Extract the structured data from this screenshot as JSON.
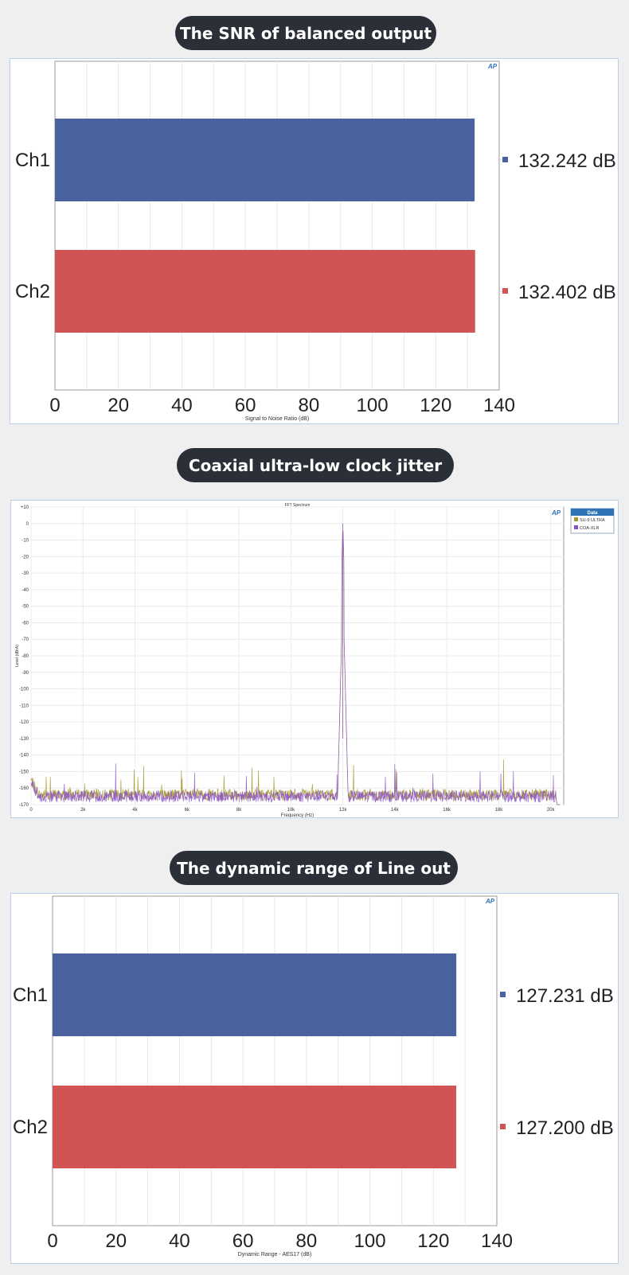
{
  "sections": [
    {
      "title": "The SNR of balanced output"
    },
    {
      "title": "Coaxial ultra-low clock jitter"
    },
    {
      "title": "The dynamic range of Line out"
    }
  ],
  "ap_logo": "AP",
  "chart_data": [
    {
      "type": "bar",
      "orientation": "horizontal",
      "categories": [
        "Ch1",
        "Ch2"
      ],
      "values": [
        132.242,
        132.402
      ],
      "value_labels": [
        "132.242 dB",
        "132.402 dB"
      ],
      "colors": [
        "#4a63a0",
        "#d05454"
      ],
      "xlabel": "Signal to Noise Ratio (dB)",
      "xlim": [
        0,
        140
      ],
      "xticks": [
        0,
        20,
        40,
        60,
        80,
        100,
        120,
        140
      ],
      "grid": true
    },
    {
      "type": "line",
      "title": "FFT Spectrum",
      "xlabel": "Frequency (Hz)",
      "ylabel": "Level (dBrA)",
      "xlim": [
        0,
        20500
      ],
      "ylim": [
        -170,
        10
      ],
      "xticks": [
        0,
        2000,
        4000,
        6000,
        8000,
        10000,
        12000,
        14000,
        16000,
        18000,
        20000
      ],
      "xtick_labels": [
        "0",
        "2k",
        "4k",
        "6k",
        "8k",
        "10k",
        "12k",
        "14k",
        "16k",
        "18k",
        "20k"
      ],
      "yticks": [
        10,
        0,
        -10,
        -20,
        -30,
        -40,
        -50,
        -60,
        -70,
        -80,
        -90,
        -100,
        -110,
        -120,
        -130,
        -140,
        -150,
        -160,
        -170
      ],
      "ytick_labels": [
        "+10",
        "0",
        "-10",
        "-20",
        "-30",
        "-40",
        "-50",
        "-60",
        "-70",
        "-80",
        "-90",
        "-100",
        "-110",
        "-120",
        "-130",
        "-140",
        "-150",
        "-160",
        "-170"
      ],
      "legend_title": "Data",
      "legend_position": "top-right outside",
      "series": [
        {
          "name": "SU-9 ULTRA",
          "color": "#a59a2c",
          "noise_floor": -164,
          "peak": {
            "x": 12000,
            "y": 0
          }
        },
        {
          "name": "COA-XLR",
          "color": "#8a4fc8",
          "noise_floor": -165,
          "peak": {
            "x": 12000,
            "y": 0
          }
        }
      ],
      "grid": true
    },
    {
      "type": "bar",
      "orientation": "horizontal",
      "categories": [
        "Ch1",
        "Ch2"
      ],
      "values": [
        127.231,
        127.2
      ],
      "value_labels": [
        "127.231 dB",
        "127.200 dB"
      ],
      "colors": [
        "#4a63a0",
        "#d05454"
      ],
      "xlabel": "Dynamic Range - AES17 (dB)",
      "xlim": [
        0,
        140
      ],
      "xticks": [
        0,
        20,
        40,
        60,
        80,
        100,
        120,
        140
      ],
      "grid": true
    }
  ]
}
